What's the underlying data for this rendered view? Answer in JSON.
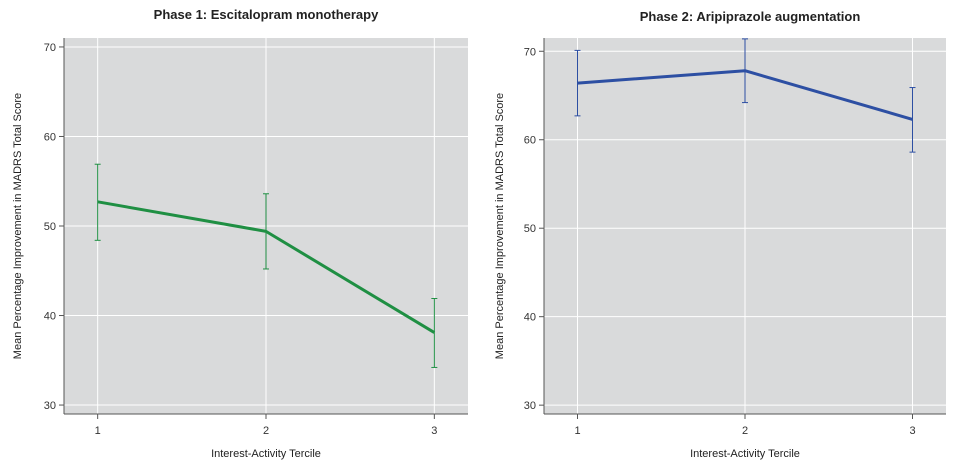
{
  "chart_data": [
    {
      "type": "line",
      "title": "Phase 1: Escitalopram monotherapy",
      "xlabel": "Interest-Activity Tercile",
      "ylabel": "Mean Percentage Improvement in MADRS Total Score",
      "x": [
        1,
        2,
        3
      ],
      "x_tick_labels": [
        "1",
        "2",
        "3"
      ],
      "y_ticks": [
        30,
        40,
        50,
        60,
        70
      ],
      "y_tick_labels": [
        "30",
        "40",
        "50",
        "60",
        "70"
      ],
      "ylim": [
        29,
        71
      ],
      "xlim": [
        0.8,
        3.2
      ],
      "grid": true,
      "series": [
        {
          "name": "Phase 1",
          "color": "#1f8f43",
          "values": [
            52.7,
            49.4,
            38.1
          ],
          "error_low": [
            48.4,
            45.2,
            34.2
          ],
          "error_high": [
            56.9,
            53.6,
            41.9
          ]
        }
      ]
    },
    {
      "type": "line",
      "title": "Phase 2: Aripiprazole augmentation",
      "xlabel": "Interest-Activity Tercile",
      "ylabel": "Mean Percentage Improvement in MADRS Total Score",
      "x": [
        1,
        2,
        3
      ],
      "x_tick_labels": [
        "1",
        "2",
        "3"
      ],
      "y_ticks": [
        30,
        40,
        50,
        60,
        70
      ],
      "y_tick_labels": [
        "30",
        "40",
        "50",
        "60",
        "70"
      ],
      "ylim": [
        29,
        71.5
      ],
      "xlim": [
        0.8,
        3.2
      ],
      "grid": true,
      "series": [
        {
          "name": "Phase 2",
          "color": "#2d4fa3",
          "values": [
            66.4,
            67.8,
            62.3
          ],
          "error_low": [
            62.7,
            64.2,
            58.6
          ],
          "error_high": [
            70.1,
            71.4,
            65.9
          ]
        }
      ]
    }
  ]
}
